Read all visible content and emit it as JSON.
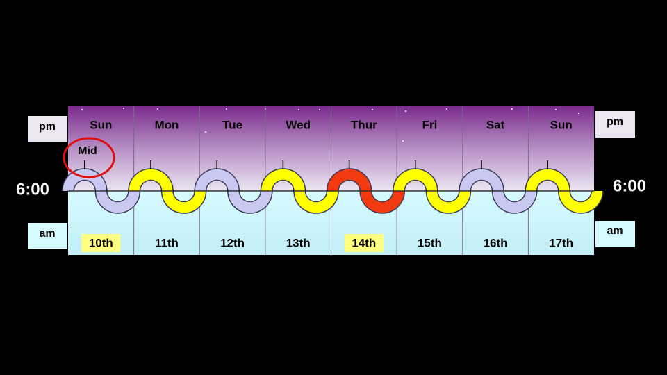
{
  "side_labels": {
    "left_top": "pm",
    "left_bottom": "am",
    "right_top": "pm",
    "right_bottom": "am"
  },
  "time_labels": {
    "left": "6:00",
    "right": "6:00"
  },
  "mid_label": "Mid",
  "days": [
    {
      "name": "Sun",
      "date": "10th",
      "color": "#c8c8f0",
      "highlight": true
    },
    {
      "name": "Mon",
      "date": "11th",
      "color": "#ffff00",
      "highlight": false
    },
    {
      "name": "Tue",
      "date": "12th",
      "color": "#c8c8f0",
      "highlight": false
    },
    {
      "name": "Wed",
      "date": "13th",
      "color": "#ffff00",
      "highlight": false
    },
    {
      "name": "Thur",
      "date": "14th",
      "color": "#f23a10",
      "highlight": true
    },
    {
      "name": "Fri",
      "date": "15th",
      "color": "#ffff00",
      "highlight": false
    },
    {
      "name": "Sat",
      "date": "16th",
      "color": "#c8c8f0",
      "highlight": false
    },
    {
      "name": "Sun",
      "date": "17th",
      "color": "#ffff00",
      "highlight": false
    }
  ]
}
